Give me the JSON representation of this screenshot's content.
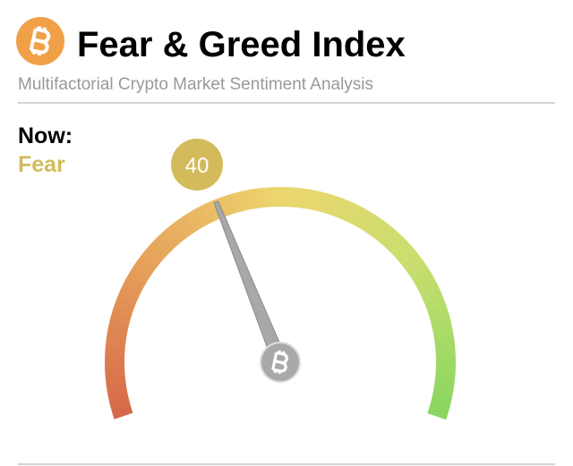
{
  "chart_data": {
    "type": "gauge",
    "title": "Fear & Greed Index",
    "subtitle": "Multifactorial Crypto Market Sentiment Analysis",
    "label": "Now:",
    "classification": "Fear",
    "value": 40,
    "ylim": [
      0,
      100
    ],
    "color": "#d3bb5b"
  }
}
